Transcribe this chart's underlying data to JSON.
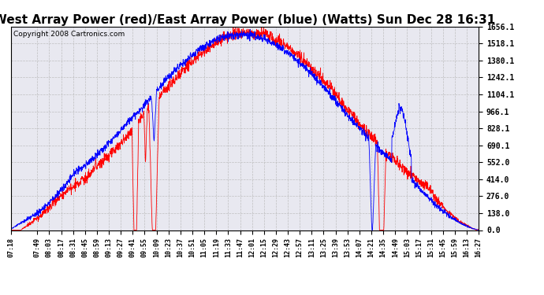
{
  "title": "West Array Power (red)/East Array Power (blue) (Watts) Sun Dec 28 16:31",
  "copyright": "Copyright 2008 Cartronics.com",
  "y_ticks": [
    0.0,
    138.0,
    276.0,
    414.0,
    552.0,
    690.1,
    828.1,
    966.1,
    1104.1,
    1242.1,
    1380.1,
    1518.1,
    1656.1
  ],
  "x_labels": [
    "07:18",
    "07:49",
    "08:03",
    "08:17",
    "08:31",
    "08:45",
    "08:59",
    "09:13",
    "09:27",
    "09:41",
    "09:55",
    "10:09",
    "10:23",
    "10:37",
    "10:51",
    "11:05",
    "11:19",
    "11:33",
    "11:47",
    "12:01",
    "12:15",
    "12:29",
    "12:43",
    "12:57",
    "13:11",
    "13:25",
    "13:39",
    "13:53",
    "14:07",
    "14:21",
    "14:35",
    "14:49",
    "15:03",
    "15:17",
    "15:31",
    "15:45",
    "15:59",
    "16:13",
    "16:27"
  ],
  "bg_color": "#ffffff",
  "grid_color": "#bbbbbb",
  "plot_bg": "#e8e8f0",
  "red_color": "#ff0000",
  "blue_color": "#0000ff",
  "ylim": [
    0.0,
    1656.1
  ],
  "title_fontsize": 11,
  "copyright_fontsize": 6.5
}
